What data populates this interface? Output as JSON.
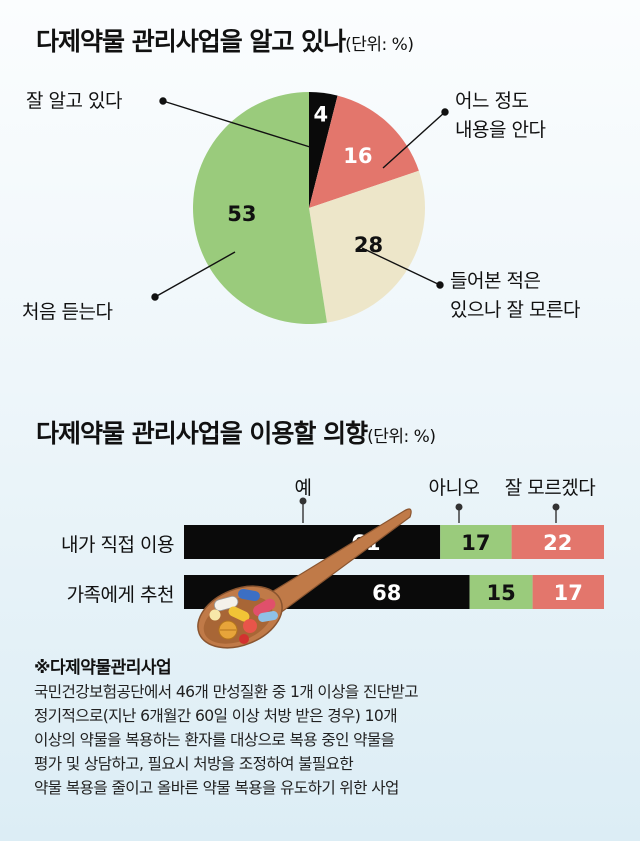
{
  "colors": {
    "black": "#0a0a0a",
    "red": "#e3766c",
    "beige": "#ede6c9",
    "green": "#9acb7c",
    "spoon": "#c07a48"
  },
  "chart_data": [
    {
      "type": "pie",
      "title": "다제약물 관리사업을 알고 있나",
      "unit_label": "(단위: %)",
      "slices": [
        {
          "label": "잘 알고 있다",
          "value": 4,
          "color": "#0a0a0a"
        },
        {
          "label": "어느 정도 내용을 안다",
          "value": 16,
          "color": "#e3766c"
        },
        {
          "label": "들어본 적은 있으나 잘 모른다",
          "value": 28,
          "color": "#ede6c9"
        },
        {
          "label": "처음 듣는다",
          "value": 53,
          "color": "#9acb7c"
        }
      ]
    },
    {
      "type": "bar",
      "stacked": true,
      "orientation": "horizontal",
      "title": "다제약물 관리사업을 이용할 의향",
      "unit_label": "(단위: %)",
      "categories": [
        "내가 직접 이용",
        "가족에게 추천"
      ],
      "series": [
        {
          "name": "예",
          "values": [
            61,
            68
          ],
          "color": "#0a0a0a"
        },
        {
          "name": "아니오",
          "values": [
            17,
            15
          ],
          "color": "#9acb7c"
        },
        {
          "name": "잘 모르겠다",
          "values": [
            22,
            17
          ],
          "color": "#e3766c"
        }
      ]
    }
  ],
  "pie_labels": {
    "know_well": "잘 알고 있다",
    "know_some_1": "어느 정도",
    "know_some_2": "내용을 안다",
    "heard_1": "들어본 적은",
    "heard_2": "있으나 잘 모른다",
    "first_time": "처음 듣는다"
  },
  "note": {
    "title": "※다제약물관리사업",
    "lines": [
      "국민건강보험공단에서 46개 만성질환 중 1개 이상을 진단받고",
      "정기적으로(지난 6개월간 60일 이상 처방 받은 경우) 10개",
      "이상의 약물을 복용하는 환자를 대상으로 복용 중인 약물을",
      "평가 및 상담하고, 필요시 처방을 조정하여 불필요한",
      "약물 복용을 줄이고 올바른 약물 복용을 유도하기 위한 사업"
    ]
  }
}
